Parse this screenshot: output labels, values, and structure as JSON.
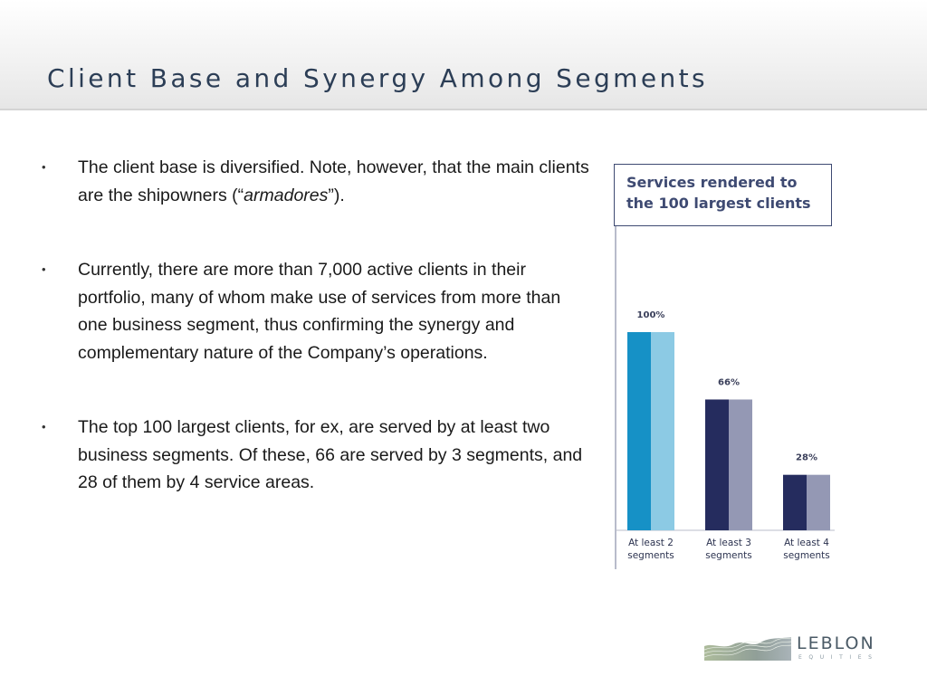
{
  "slide": {
    "title": "Client Base and Synergy Among Segments"
  },
  "bullets": [
    {
      "parts": [
        {
          "text": "The client base is diversified. Note, however, that the main clients are the shipowners (“",
          "italic": false
        },
        {
          "text": "armadores",
          "italic": true
        },
        {
          "text": "”).",
          "italic": false
        }
      ]
    },
    {
      "parts": [
        {
          "text": "Currently,  there are more than 7,000 active clients in their portfolio,  many of whom make use of services from more than one business segment, thus confirming the synergy and complementary nature of the Company’s operations.",
          "italic": false
        }
      ]
    },
    {
      "parts": [
        {
          "text": "The top 100 largest clients,  for ex,  are served by at least two business segments.  Of these,  66 are served by 3 segments,  and 28 of them by 4 service areas.",
          "italic": false
        }
      ]
    }
  ],
  "bullet_glyph": "•",
  "chart_data": {
    "type": "bar",
    "title": "Services rendered to the 100 largest clients",
    "categories": [
      [
        "At least 2",
        "segments"
      ],
      [
        "At least 3",
        "segments"
      ],
      [
        "At least 4",
        "segments"
      ]
    ],
    "values": [
      100,
      66,
      28
    ],
    "value_labels": [
      "100%",
      "66%",
      "28%"
    ],
    "ylim": [
      0,
      100
    ],
    "xlabel": "",
    "ylabel": "",
    "grid": false,
    "legend": "none",
    "colors": {
      "first_bar": [
        "#1691c6",
        "#8ccae4"
      ],
      "other_bars": [
        "#252c5e",
        "#9498b4"
      ],
      "title": "#3e4a72"
    }
  },
  "logo": {
    "name": "LEBLON",
    "sub": "EQUITIES"
  },
  "colors": {
    "title_text": "#2c3e56",
    "body_text": "#1a1a1a"
  }
}
